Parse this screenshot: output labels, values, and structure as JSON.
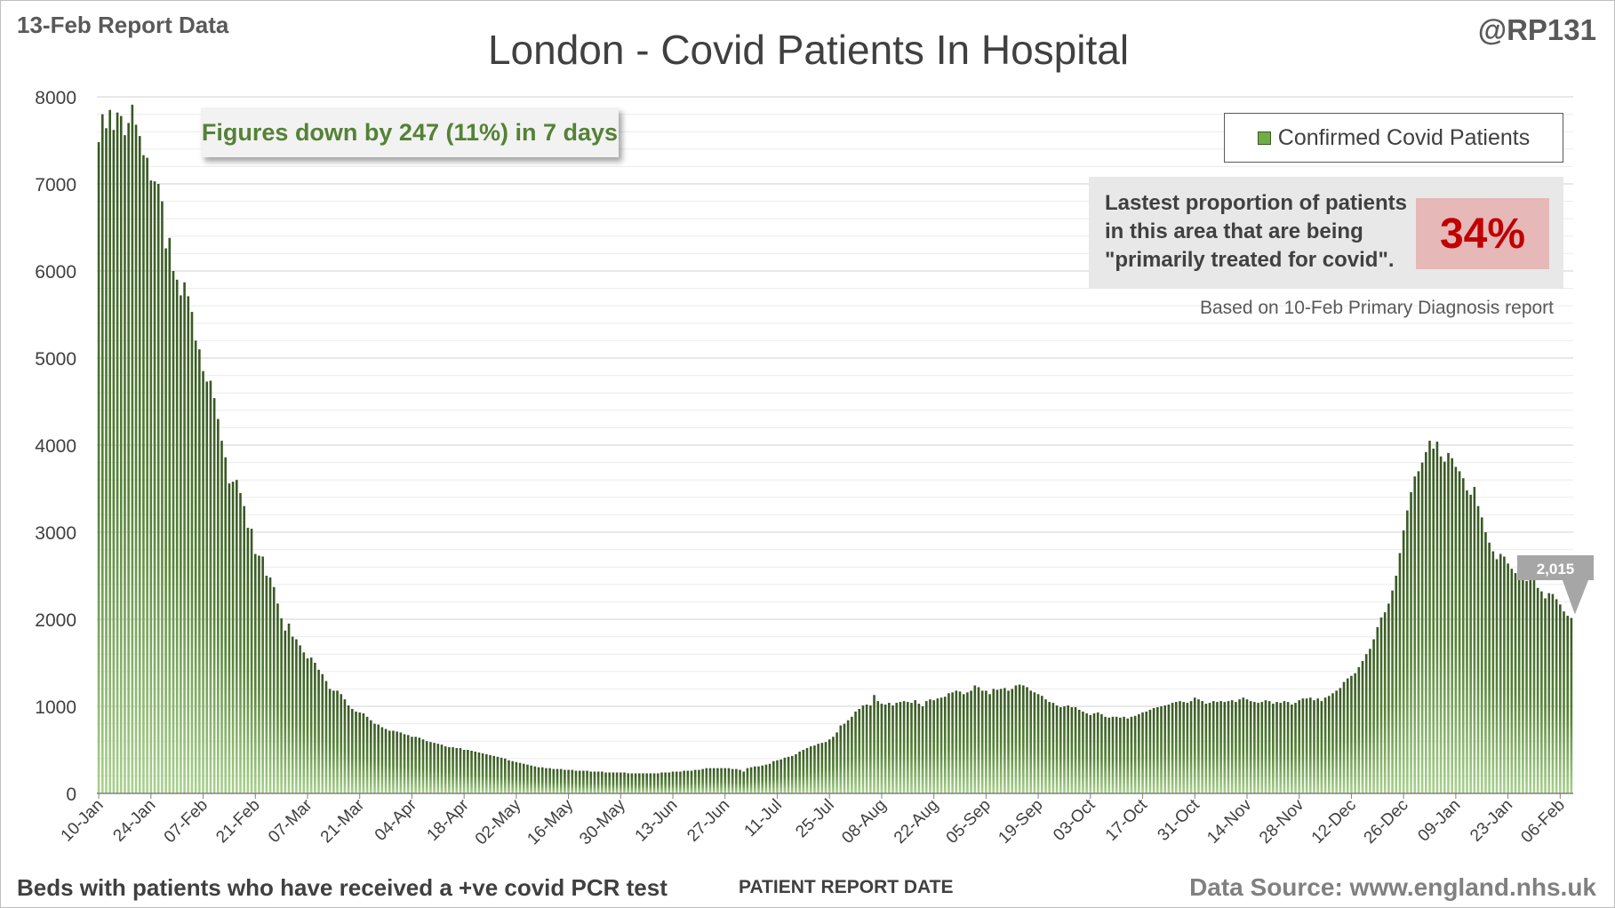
{
  "header": {
    "report_date": "13-Feb Report Data",
    "handle": "@RP131"
  },
  "summary": "Figures down by 247 (11%) in 7 days",
  "proportion": {
    "text_lines": [
      "Lastest proportion of patients",
      "in this area that are being",
      "\"primarily treated for covid\"."
    ],
    "value": "34%",
    "note": "Based on 10-Feb Primary Diagnosis report"
  },
  "footer": {
    "note": "Beds with patients who have received a +ve covid PCR test",
    "source": "Data Source: www.england.nhs.uk"
  },
  "colors": {
    "bar_dark": "#385723",
    "bar_light": "#a9d18e",
    "summary_text": "#548235",
    "proportion_value": "#c00000",
    "proportion_box": "#e6b8b8"
  },
  "chart_data": {
    "type": "bar",
    "title": "London - Covid Patients In Hospital",
    "xlabel": "PATIENT REPORT DATE",
    "ylabel": "",
    "ylim": [
      0,
      8000
    ],
    "yticks": [
      0,
      1000,
      2000,
      3000,
      4000,
      5000,
      6000,
      7000,
      8000
    ],
    "grid": true,
    "legend": {
      "position": "top-right",
      "entries": [
        "Confirmed Covid Patients"
      ]
    },
    "series": [
      {
        "name": "Confirmed Covid Patients",
        "start_date": "2021-01-10",
        "values": [
          7480,
          7800,
          7640,
          7850,
          7620,
          7820,
          7780,
          7560,
          7700,
          7910,
          7680,
          7550,
          7330,
          7300,
          7040,
          7030,
          7000,
          6800,
          6260,
          6380,
          6000,
          5900,
          5720,
          5870,
          5710,
          5530,
          5200,
          5100,
          4850,
          4730,
          4740,
          4540,
          4300,
          4050,
          3860,
          3560,
          3580,
          3600,
          3450,
          3300,
          3050,
          3040,
          2750,
          2730,
          2720,
          2500,
          2480,
          2370,
          2180,
          2010,
          1870,
          1950,
          1800,
          1770,
          1700,
          1620,
          1550,
          1560,
          1500,
          1420,
          1370,
          1290,
          1200,
          1180,
          1180,
          1140,
          1080,
          1010,
          970,
          940,
          930,
          920,
          880,
          840,
          800,
          790,
          760,
          740,
          720,
          720,
          710,
          700,
          680,
          670,
          650,
          650,
          640,
          620,
          600,
          590,
          580,
          570,
          560,
          540,
          530,
          530,
          520,
          520,
          500,
          500,
          490,
          480,
          470,
          460,
          450,
          440,
          430,
          420,
          410,
          400,
          380,
          370,
          360,
          350,
          340,
          330,
          320,
          310,
          300,
          300,
          290,
          290,
          280,
          280,
          280,
          270,
          270,
          270,
          260,
          260,
          260,
          260,
          250,
          250,
          250,
          250,
          240,
          240,
          240,
          240,
          240,
          240,
          230,
          230,
          230,
          230,
          230,
          230,
          230,
          230,
          230,
          240,
          240,
          240,
          250,
          250,
          250,
          260,
          260,
          260,
          270,
          270,
          280,
          290,
          290,
          290,
          290,
          290,
          290,
          290,
          280,
          280,
          270,
          250,
          290,
          300,
          310,
          310,
          320,
          330,
          340,
          370,
          380,
          390,
          410,
          420,
          430,
          450,
          480,
          500,
          520,
          540,
          550,
          570,
          580,
          590,
          620,
          650,
          700,
          780,
          800,
          840,
          880,
          940,
          970,
          1010,
          1020,
          1010,
          1130,
          1060,
          1030,
          1020,
          1040,
          1010,
          1040,
          1050,
          1060,
          1050,
          1040,
          1070,
          1030,
          1000,
          1060,
          1080,
          1070,
          1090,
          1100,
          1110,
          1150,
          1160,
          1180,
          1170,
          1140,
          1160,
          1180,
          1240,
          1220,
          1180,
          1180,
          1140,
          1200,
          1190,
          1200,
          1210,
          1180,
          1200,
          1240,
          1250,
          1240,
          1220,
          1180,
          1160,
          1140,
          1120,
          1080,
          1050,
          1040,
          1010,
          990,
          1000,
          1010,
          990,
          990,
          960,
          940,
          920,
          900,
          920,
          930,
          910,
          880,
          870,
          880,
          880,
          870,
          880,
          860,
          880,
          890,
          910,
          930,
          940,
          960,
          980,
          990,
          1000,
          1010,
          1020,
          1040,
          1050,
          1060,
          1050,
          1040,
          1060,
          1100,
          1080,
          1060,
          1030,
          1040,
          1060,
          1050,
          1060,
          1050,
          1060,
          1070,
          1050,
          1080,
          1100,
          1080,
          1060,
          1050,
          1040,
          1050,
          1070,
          1060,
          1030,
          1050,
          1040,
          1060,
          1050,
          1020,
          1040,
          1070,
          1090,
          1090,
          1100,
          1070,
          1090,
          1060,
          1100,
          1120,
          1150,
          1180,
          1210,
          1280,
          1320,
          1350,
          1380,
          1450,
          1520,
          1600,
          1660,
          1770,
          1910,
          2020,
          2080,
          2180,
          2330,
          2500,
          2760,
          3020,
          3250,
          3460,
          3640,
          3700,
          3800,
          3920,
          4050,
          3960,
          4040,
          3870,
          3810,
          3910,
          3850,
          3750,
          3700,
          3620,
          3480,
          3430,
          3520,
          3300,
          3170,
          3000,
          2880,
          2780,
          2690,
          2750,
          2720,
          2640,
          2580,
          2530,
          2480,
          2450,
          2440,
          2500,
          2560,
          2360,
          2320,
          2240,
          2300,
          2290,
          2230,
          2170,
          2090,
          2040,
          2015
        ]
      }
    ],
    "xticks": [
      "10-Jan",
      "24-Jan",
      "07-Feb",
      "21-Feb",
      "07-Mar",
      "21-Mar",
      "04-Apr",
      "18-Apr",
      "02-May",
      "16-May",
      "30-May",
      "13-Jun",
      "27-Jun",
      "11-Jul",
      "25-Jul",
      "08-Aug",
      "22-Aug",
      "05-Sep",
      "19-Sep",
      "03-Oct",
      "17-Oct",
      "31-Oct",
      "14-Nov",
      "28-Nov",
      "12-Dec",
      "26-Dec",
      "09-Jan",
      "23-Jan",
      "06-Feb"
    ],
    "callout": {
      "label": "2,015",
      "value": 2015
    }
  }
}
